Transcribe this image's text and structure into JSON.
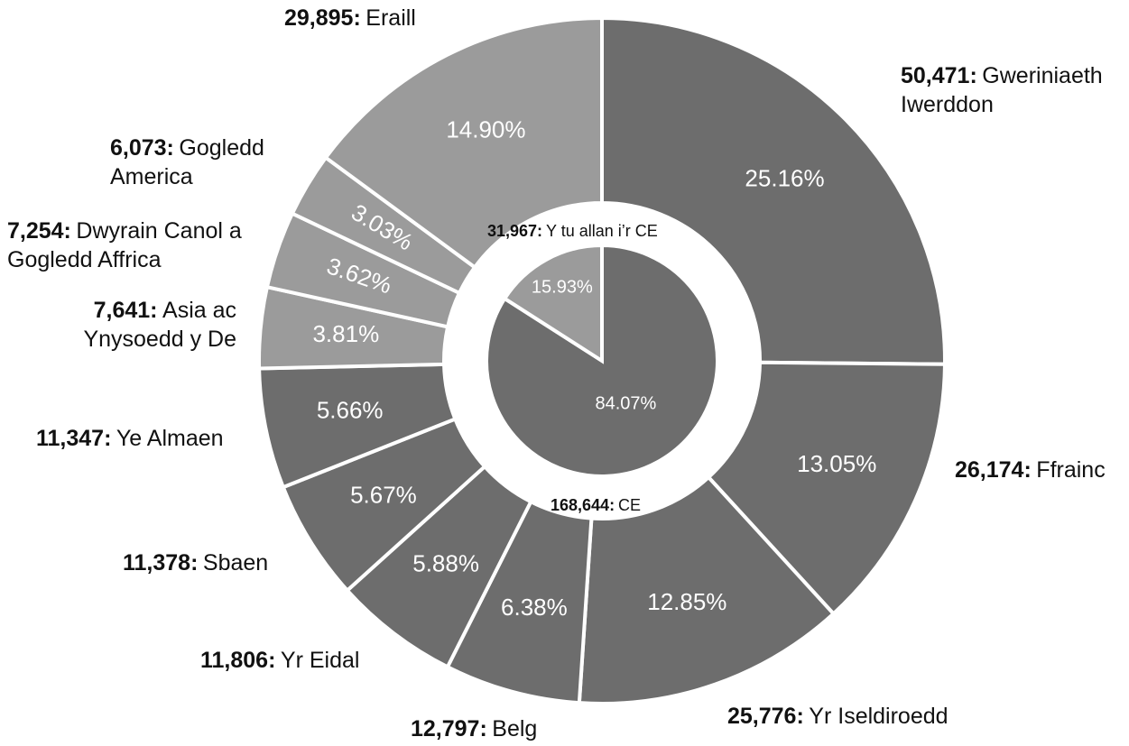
{
  "chart_data": {
    "type": "nested-pie",
    "series": [
      {
        "name": "outer",
        "categories": [
          "Gweriniaeth Iwerddon",
          "Ffrainc",
          "Yr Iseldiroedd",
          "Belg",
          "Yr Eidal",
          "Sbaen",
          "Ye Almaen",
          "Asia ac Ynysoedd y De",
          "Dwyrain Canol a Gogledd Affrica",
          "Gogledd America",
          "Eraill"
        ],
        "values": [
          50471,
          26174,
          25776,
          12797,
          11806,
          11378,
          11347,
          7641,
          7254,
          6073,
          29895
        ],
        "value_labels": [
          "50,471:",
          "26,174:",
          "25,776:",
          "12,797:",
          "11,806:",
          "11,378:",
          "11,347:",
          "7,641:",
          "7,254:",
          "6,073:",
          "29,895:"
        ],
        "percent_values": [
          25.16,
          13.05,
          12.85,
          6.38,
          5.88,
          5.67,
          5.66,
          3.81,
          3.62,
          3.03,
          14.9
        ],
        "percent_labels": [
          "25.16%",
          "13.05%",
          "12.85%",
          "6.38%",
          "5.88%",
          "5.67%",
          "5.66%",
          "3.81%",
          "3.62%",
          "3.03%",
          "14.90%"
        ],
        "colors": [
          "#6d6d6d",
          "#6d6d6d",
          "#6d6d6d",
          "#6d6d6d",
          "#6d6d6d",
          "#6d6d6d",
          "#6d6d6d",
          "#9b9b9b",
          "#9b9b9b",
          "#9b9b9b",
          "#9b9b9b"
        ]
      },
      {
        "name": "inner",
        "categories": [
          "CE",
          "Y tu allan i’r CE"
        ],
        "values": [
          168644,
          31967
        ],
        "value_labels": [
          "168,644:",
          "31,967:"
        ],
        "percent_values": [
          84.07,
          15.93
        ],
        "percent_labels": [
          "84.07%",
          "15.93%"
        ],
        "colors": [
          "#6d6d6d",
          "#9b9b9b"
        ]
      }
    ]
  }
}
